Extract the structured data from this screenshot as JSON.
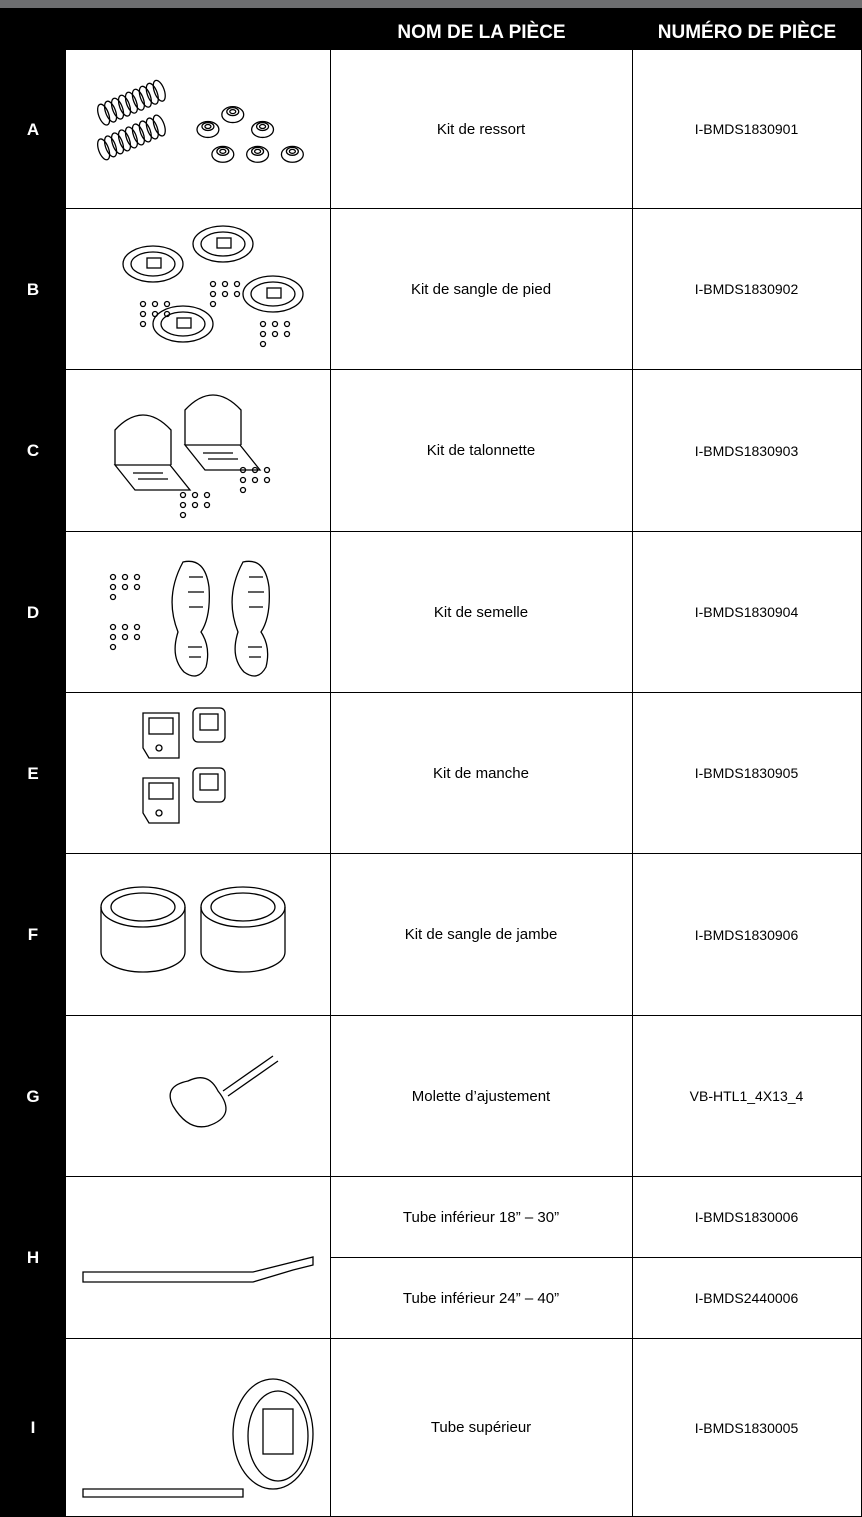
{
  "header": {
    "columns": [
      "NOM DE LA PIÈCE",
      "NUMÉRO DE PIÈCE"
    ]
  },
  "table": {
    "rows": [
      {
        "letter": "A",
        "parts": [
          {
            "name": "Kit de ressort",
            "number": "I-BMDS1830901"
          }
        ]
      },
      {
        "letter": "B",
        "parts": [
          {
            "name": "Kit de sangle de pied",
            "number": "I-BMDS1830902"
          }
        ]
      },
      {
        "letter": "C",
        "parts": [
          {
            "name": "Kit de talonnette",
            "number": "I-BMDS1830903"
          }
        ]
      },
      {
        "letter": "D",
        "parts": [
          {
            "name": "Kit de semelle",
            "number": "I-BMDS1830904"
          }
        ]
      },
      {
        "letter": "E",
        "parts": [
          {
            "name": "Kit de manche",
            "number": "I-BMDS1830905"
          }
        ]
      },
      {
        "letter": "F",
        "parts": [
          {
            "name": "Kit de sangle de jambe",
            "number": "I-BMDS1830906"
          }
        ]
      },
      {
        "letter": "G",
        "parts": [
          {
            "name": "Molette d’ajustement",
            "number": "VB-HTL1_4X13_4"
          }
        ]
      },
      {
        "letter": "H",
        "parts": [
          {
            "name": "Tube inférieur 18” – 30”",
            "number": "I-BMDS1830006"
          },
          {
            "name": "Tube inférieur 24” – 40”",
            "number": "I-BMDS2440006"
          }
        ]
      },
      {
        "letter": "I",
        "parts": [
          {
            "name": "Tube supérieur",
            "number": "I-BMDS1830005"
          }
        ]
      }
    ]
  }
}
